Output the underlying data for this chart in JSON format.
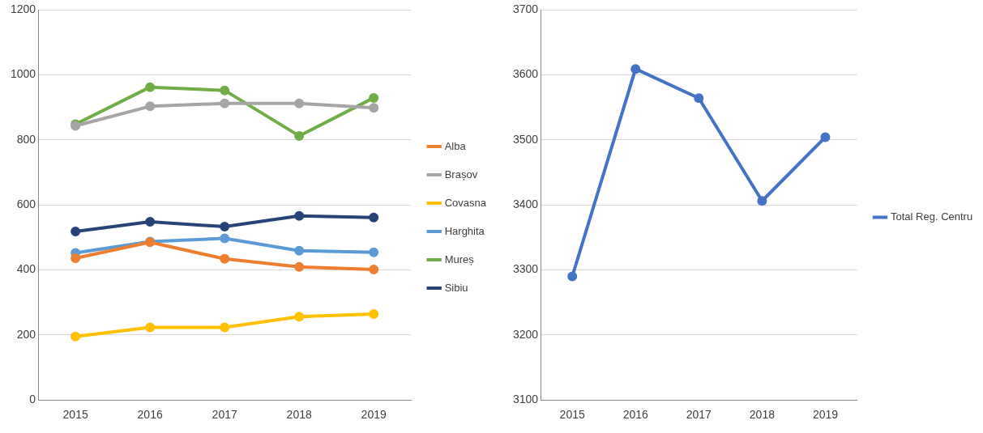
{
  "chart_data": [
    {
      "type": "line",
      "categories": [
        "2015",
        "2016",
        "2017",
        "2018",
        "2019"
      ],
      "ylim": [
        0,
        1200
      ],
      "yticks": [
        0,
        200,
        400,
        600,
        800,
        1000,
        1200
      ],
      "grid": "y",
      "legend": "right",
      "marker": "circle",
      "series": [
        {
          "name": "Alba",
          "color": "#ed7d31",
          "values": [
            436,
            485,
            434,
            409,
            401
          ]
        },
        {
          "name": "Brașov",
          "color": "#a5a5a5",
          "values": [
            843,
            903,
            912,
            912,
            898
          ]
        },
        {
          "name": "Covasna",
          "color": "#ffc000",
          "values": [
            195,
            223,
            223,
            256,
            264
          ]
        },
        {
          "name": "Harghita",
          "color": "#5b9bd5",
          "values": [
            452,
            487,
            497,
            459,
            454
          ]
        },
        {
          "name": "Mureș",
          "color": "#70ad47",
          "values": [
            848,
            962,
            952,
            812,
            929
          ]
        },
        {
          "name": "Sibiu",
          "color": "#264478",
          "values": [
            518,
            548,
            533,
            566,
            561
          ]
        }
      ]
    },
    {
      "type": "line",
      "categories": [
        "2015",
        "2016",
        "2017",
        "2018",
        "2019"
      ],
      "ylim": [
        3100,
        3700
      ],
      "yticks": [
        3100,
        3200,
        3300,
        3400,
        3500,
        3600,
        3700
      ],
      "grid": "y",
      "legend": "right",
      "marker": "circle",
      "series": [
        {
          "name": "Total Reg. Centru",
          "color": "#4472c4",
          "values": [
            3290,
            3609,
            3564,
            3406,
            3504
          ]
        }
      ]
    }
  ]
}
